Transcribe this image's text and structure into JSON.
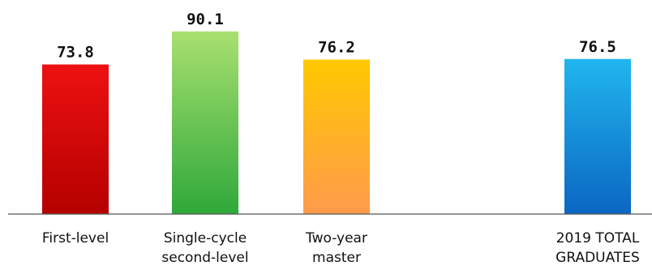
{
  "chart_data": {
    "type": "bar",
    "categories": [
      [
        "First-level"
      ],
      [
        "Single-cycle",
        "second-level"
      ],
      [
        "Two-year",
        "master"
      ],
      [
        "2019 TOTAL",
        "GRADUATES"
      ]
    ],
    "values": [
      73.8,
      90.1,
      76.2,
      76.5
    ],
    "value_labels": [
      "73.8",
      "90.1",
      "76.2",
      "76.5"
    ],
    "title": "",
    "xlabel": "",
    "ylabel": "",
    "grid": false,
    "legend": "none",
    "colors": [
      [
        "#ee1111",
        "#b40000"
      ],
      [
        "#a8e070",
        "#2fa83a"
      ],
      [
        "#ffc800",
        "#ff9b4c"
      ],
      [
        "#21b6ef",
        "#0b66c2"
      ]
    ],
    "axis_color": "#555555"
  }
}
